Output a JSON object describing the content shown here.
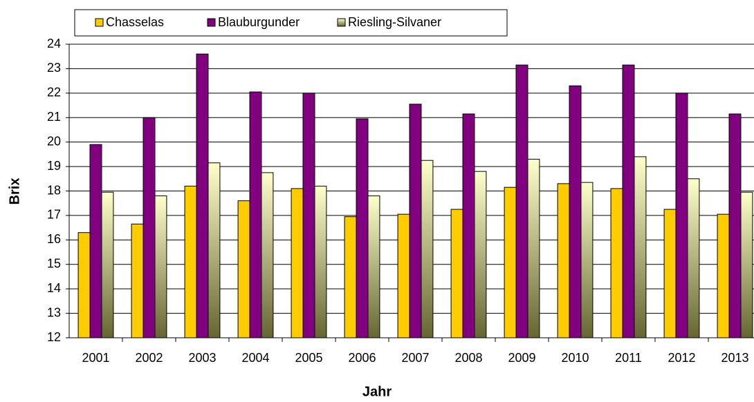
{
  "chart_data": {
    "type": "bar",
    "x_label": "Jahr",
    "y_label": "Brix",
    "categories": [
      "2001",
      "2002",
      "2003",
      "2004",
      "2005",
      "2006",
      "2007",
      "2008",
      "2009",
      "2010",
      "2011",
      "2012",
      "2013"
    ],
    "series": [
      {
        "name": "Chasselas",
        "color": "#ffcc00",
        "values": [
          16.3,
          16.65,
          18.2,
          17.6,
          18.1,
          16.95,
          17.05,
          17.25,
          18.15,
          18.3,
          18.1,
          17.25,
          17.05
        ]
      },
      {
        "name": "Blauburgunder",
        "color": "#800080",
        "values": [
          19.9,
          21.0,
          23.6,
          22.05,
          22.0,
          20.95,
          21.55,
          21.15,
          23.15,
          22.3,
          23.15,
          22.0,
          21.15
        ]
      },
      {
        "name": "Riesling-Silvaner",
        "color": "#ffffcc",
        "values": [
          17.95,
          17.8,
          19.15,
          18.75,
          18.2,
          17.8,
          19.25,
          18.8,
          19.3,
          18.35,
          19.4,
          18.5,
          17.95
        ]
      }
    ],
    "ylim": [
      12,
      24
    ],
    "yticks": [
      12,
      13,
      14,
      15,
      16,
      17,
      18,
      19,
      20,
      21,
      22,
      23,
      24
    ],
    "grid": true,
    "legend": "top"
  }
}
